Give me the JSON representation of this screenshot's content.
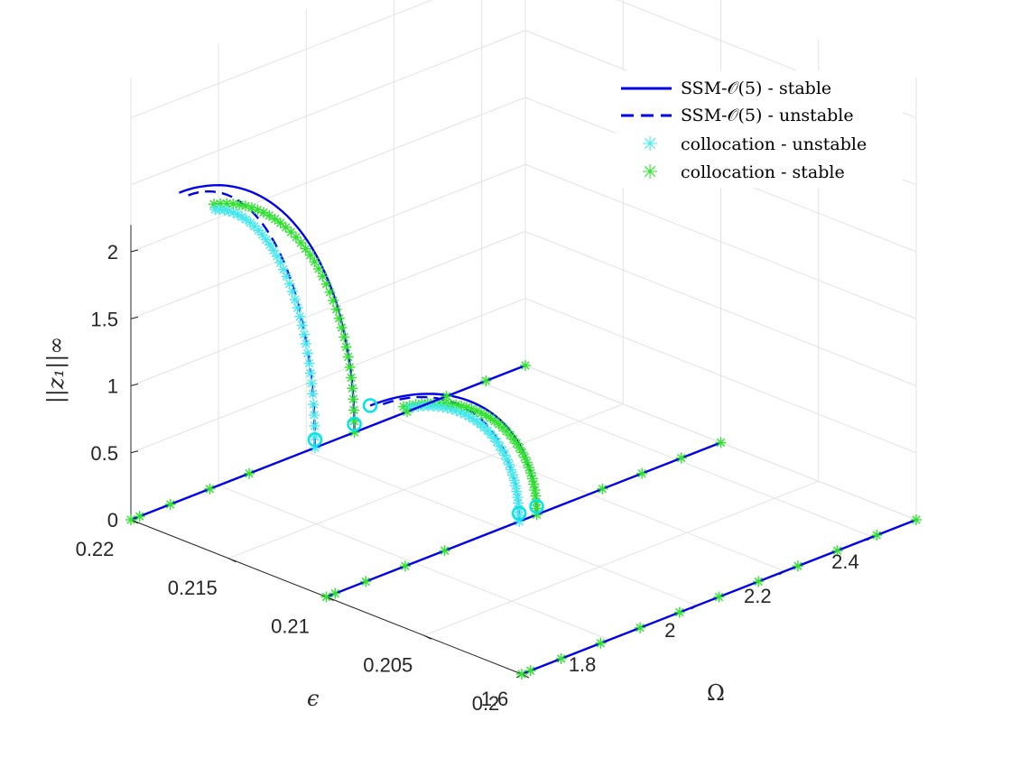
{
  "chart_data": {
    "type": "line3d",
    "title": "",
    "xlabel": "Ω",
    "ylabel": "ϵ",
    "zlabel": "||z₁||∞",
    "xlim": [
      1.6,
      2.5
    ],
    "ylim": [
      0.2,
      0.22
    ],
    "zlim": [
      0,
      2.2
    ],
    "xticks": [
      "1.6",
      "1.8",
      "2",
      "2.2",
      "2.4"
    ],
    "yticks": [
      "0.2",
      "0.205",
      "0.21",
      "0.215",
      "0.22"
    ],
    "zticks": [
      "0",
      "0.5",
      "1",
      "1.5",
      "2"
    ],
    "grid": true,
    "legend_position": "top-right",
    "legend": [
      {
        "label": "SSM-𝒪(5) - stable",
        "style": "solid",
        "color": "#0000ee"
      },
      {
        "label": "SSM-𝒪(5) - unstable",
        "style": "dashed",
        "color": "#0000ee"
      },
      {
        "label": "collocation - unstable",
        "style": "star",
        "color": "#44e8ef"
      },
      {
        "label": "collocation - stable",
        "style": "star",
        "color": "#2ee22e"
      }
    ],
    "colors": {
      "ssm": "#0000ee",
      "unstable_marker": "#44e8ef",
      "stable_marker": "#2ee22e",
      "hopf_marker": "#00e5e5"
    },
    "series": [
      {
        "eps": 0.2,
        "base_x": [
          1.6,
          2.5
        ],
        "branch": null
      },
      {
        "eps": 0.21,
        "base_x": [
          1.6,
          2.5
        ],
        "branch": {
          "x_fold": 2.05,
          "z_top": 1.3,
          "x_stable": 2.08,
          "x_unstable": 2.04
        }
      },
      {
        "eps": 0.22,
        "base_x": [
          1.6,
          2.5
        ],
        "branch": {
          "x_fold": 2.06,
          "z_top": 2.3,
          "x_stable": 2.11,
          "x_unstable": 2.02
        }
      }
    ]
  }
}
